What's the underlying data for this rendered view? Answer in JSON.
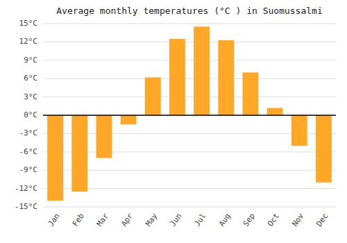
{
  "chart_data": {
    "type": "bar",
    "title": "Average monthly temperatures (°C ) in Suomussalmi",
    "categories": [
      "Jan",
      "Feb",
      "Mar",
      "Apr",
      "May",
      "Jun",
      "Jul",
      "Aug",
      "Sep",
      "Oct",
      "Nov",
      "Dec"
    ],
    "values": [
      -14,
      -12.5,
      -7,
      -1.5,
      6.2,
      12.5,
      14.5,
      12.3,
      7,
      1.2,
      -5,
      -11
    ],
    "color": "#FFA726",
    "ylim": [
      -15,
      15
    ],
    "yticks": [
      {
        "value": -15,
        "label": "-15°C"
      },
      {
        "value": -12,
        "label": "-12°C"
      },
      {
        "value": -9,
        "label": "-9°C"
      },
      {
        "value": -6,
        "label": "-6°C"
      },
      {
        "value": -3,
        "label": "-3°C"
      },
      {
        "value": 0,
        "label": "0°C"
      },
      {
        "value": 3,
        "label": "3°C"
      },
      {
        "value": 6,
        "label": "6°C"
      },
      {
        "value": 9,
        "label": "9°C"
      },
      {
        "value": 12,
        "label": "12°C"
      },
      {
        "value": 15,
        "label": "15°C"
      }
    ],
    "grid": true
  }
}
